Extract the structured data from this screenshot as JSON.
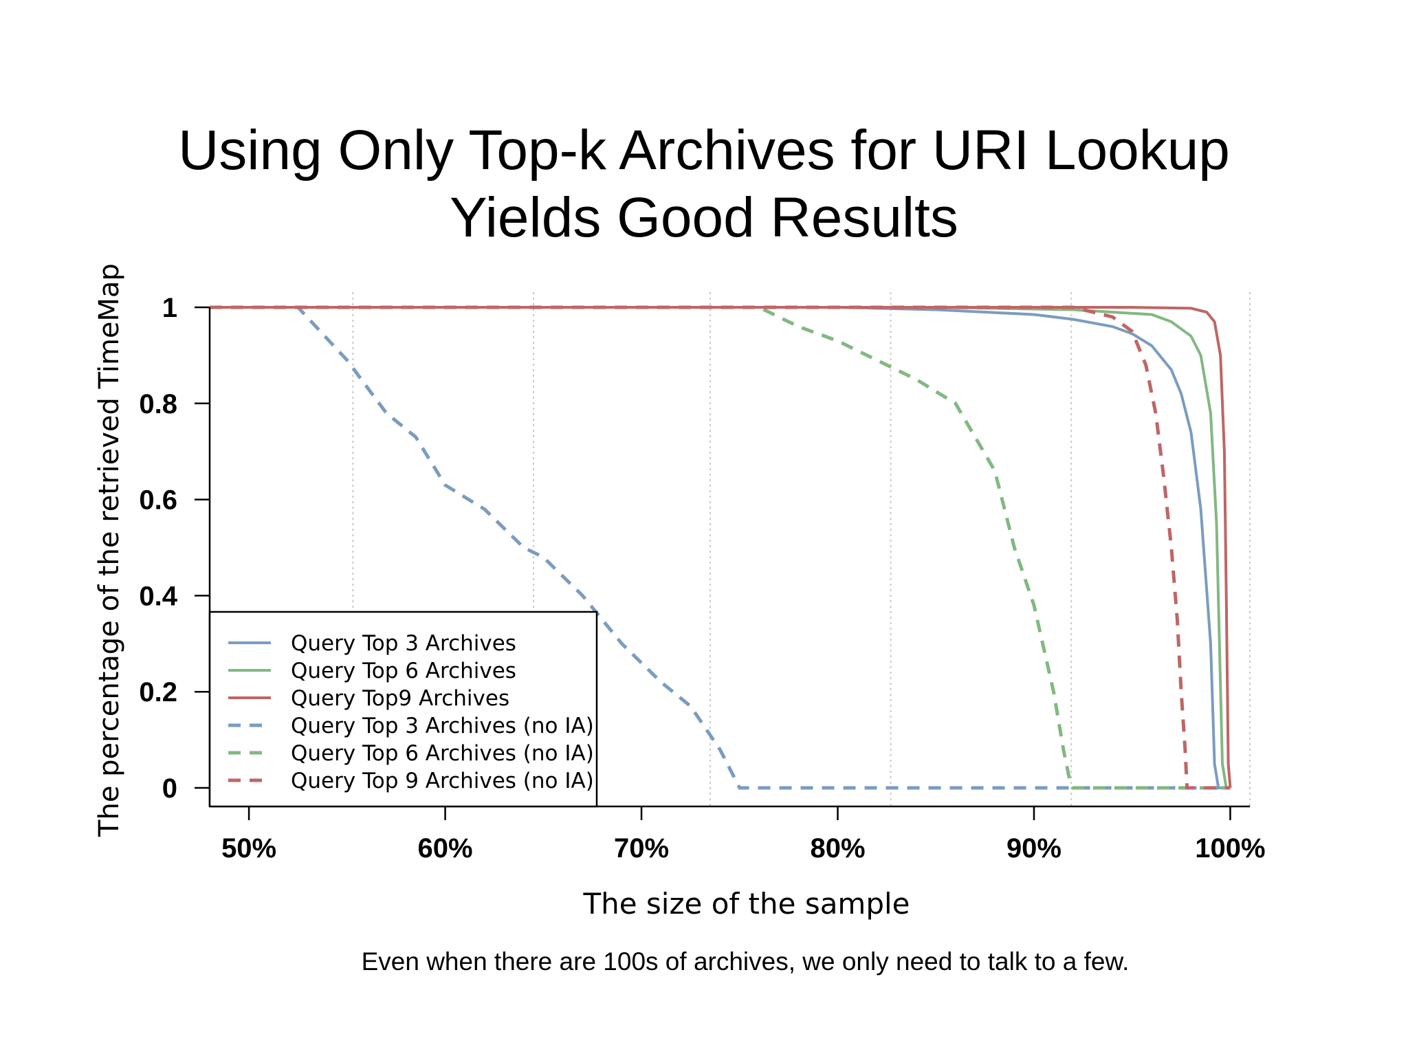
{
  "slide": {
    "title_line1": "Using Only Top-k Archives for URI Lookup",
    "title_line2": "Yields Good Results",
    "caption": "Even when there are 100s of archives, we only need to talk to a few."
  },
  "chart_data": {
    "type": "line",
    "title": "",
    "xlabel": "The size of the sample",
    "ylabel": "The percentage of the retrieved TimeMap",
    "x_ticks": [
      "50%",
      "60%",
      "70%",
      "80%",
      "90%",
      "100%"
    ],
    "y_ticks": [
      "0",
      "0.2",
      "0.4",
      "0.6",
      "0.8",
      "1"
    ],
    "xlim": [
      48,
      101
    ],
    "ylim": [
      0,
      1
    ],
    "grid": "vertical dotted",
    "legend_position": "bottom-left",
    "series": [
      {
        "name": "Query Top 3 Archives",
        "color": "#7a9cc0",
        "dash": "solid",
        "x": [
          48,
          75,
          80,
          85,
          90,
          92,
          94,
          95,
          96,
          97,
          97.5,
          98,
          98.5,
          99,
          99.2,
          99.4,
          99.6,
          100
        ],
        "y": [
          1,
          1,
          1,
          0.995,
          0.985,
          0.975,
          0.96,
          0.945,
          0.92,
          0.87,
          0.82,
          0.74,
          0.58,
          0.3,
          0.05,
          0,
          0,
          0
        ]
      },
      {
        "name": "Query Top 6 Archives",
        "color": "#82b882",
        "dash": "solid",
        "x": [
          48,
          85,
          92,
          96,
          97,
          98,
          98.5,
          99,
          99.3,
          99.6,
          99.8,
          100
        ],
        "y": [
          1,
          1,
          0.995,
          0.985,
          0.97,
          0.94,
          0.9,
          0.78,
          0.55,
          0.05,
          0,
          0
        ]
      },
      {
        "name": "Query Top9 Archives",
        "color": "#c06565",
        "dash": "solid",
        "x": [
          48,
          95,
          98,
          98.8,
          99.2,
          99.5,
          99.7,
          99.8,
          99.9,
          100
        ],
        "y": [
          1,
          1,
          0.998,
          0.99,
          0.97,
          0.9,
          0.7,
          0.4,
          0.05,
          0
        ]
      },
      {
        "name": "Query Top 3 Archives (no IA)",
        "color": "#7a9cc0",
        "dash": "dashed",
        "x": [
          48,
          52.5,
          55,
          57,
          58.5,
          60,
          62,
          64,
          65,
          67,
          69,
          71,
          72.5,
          74,
          75,
          80,
          90,
          100
        ],
        "y": [
          1,
          1,
          0.89,
          0.78,
          0.73,
          0.63,
          0.58,
          0.5,
          0.48,
          0.4,
          0.3,
          0.22,
          0.17,
          0.08,
          0,
          0,
          0,
          0
        ]
      },
      {
        "name": "Query Top 6 Archives (no IA)",
        "color": "#82b882",
        "dash": "dashed",
        "x": [
          48,
          76,
          78,
          80,
          82,
          84,
          86,
          87,
          88,
          88.5,
          89,
          90,
          91,
          91.5,
          91.8,
          92,
          100
        ],
        "y": [
          1,
          1,
          0.96,
          0.93,
          0.89,
          0.85,
          0.8,
          0.73,
          0.66,
          0.58,
          0.5,
          0.38,
          0.2,
          0.08,
          0.02,
          0,
          0
        ]
      },
      {
        "name": "Query Top 9 Archives (no IA)",
        "color": "#c06565",
        "dash": "dashed",
        "x": [
          48,
          92,
          94,
          95,
          95.7,
          96.2,
          96.6,
          97,
          97.3,
          97.5,
          97.7,
          97.8,
          100
        ],
        "y": [
          1,
          1,
          0.98,
          0.95,
          0.88,
          0.78,
          0.65,
          0.5,
          0.35,
          0.2,
          0.08,
          0,
          0
        ]
      }
    ]
  }
}
